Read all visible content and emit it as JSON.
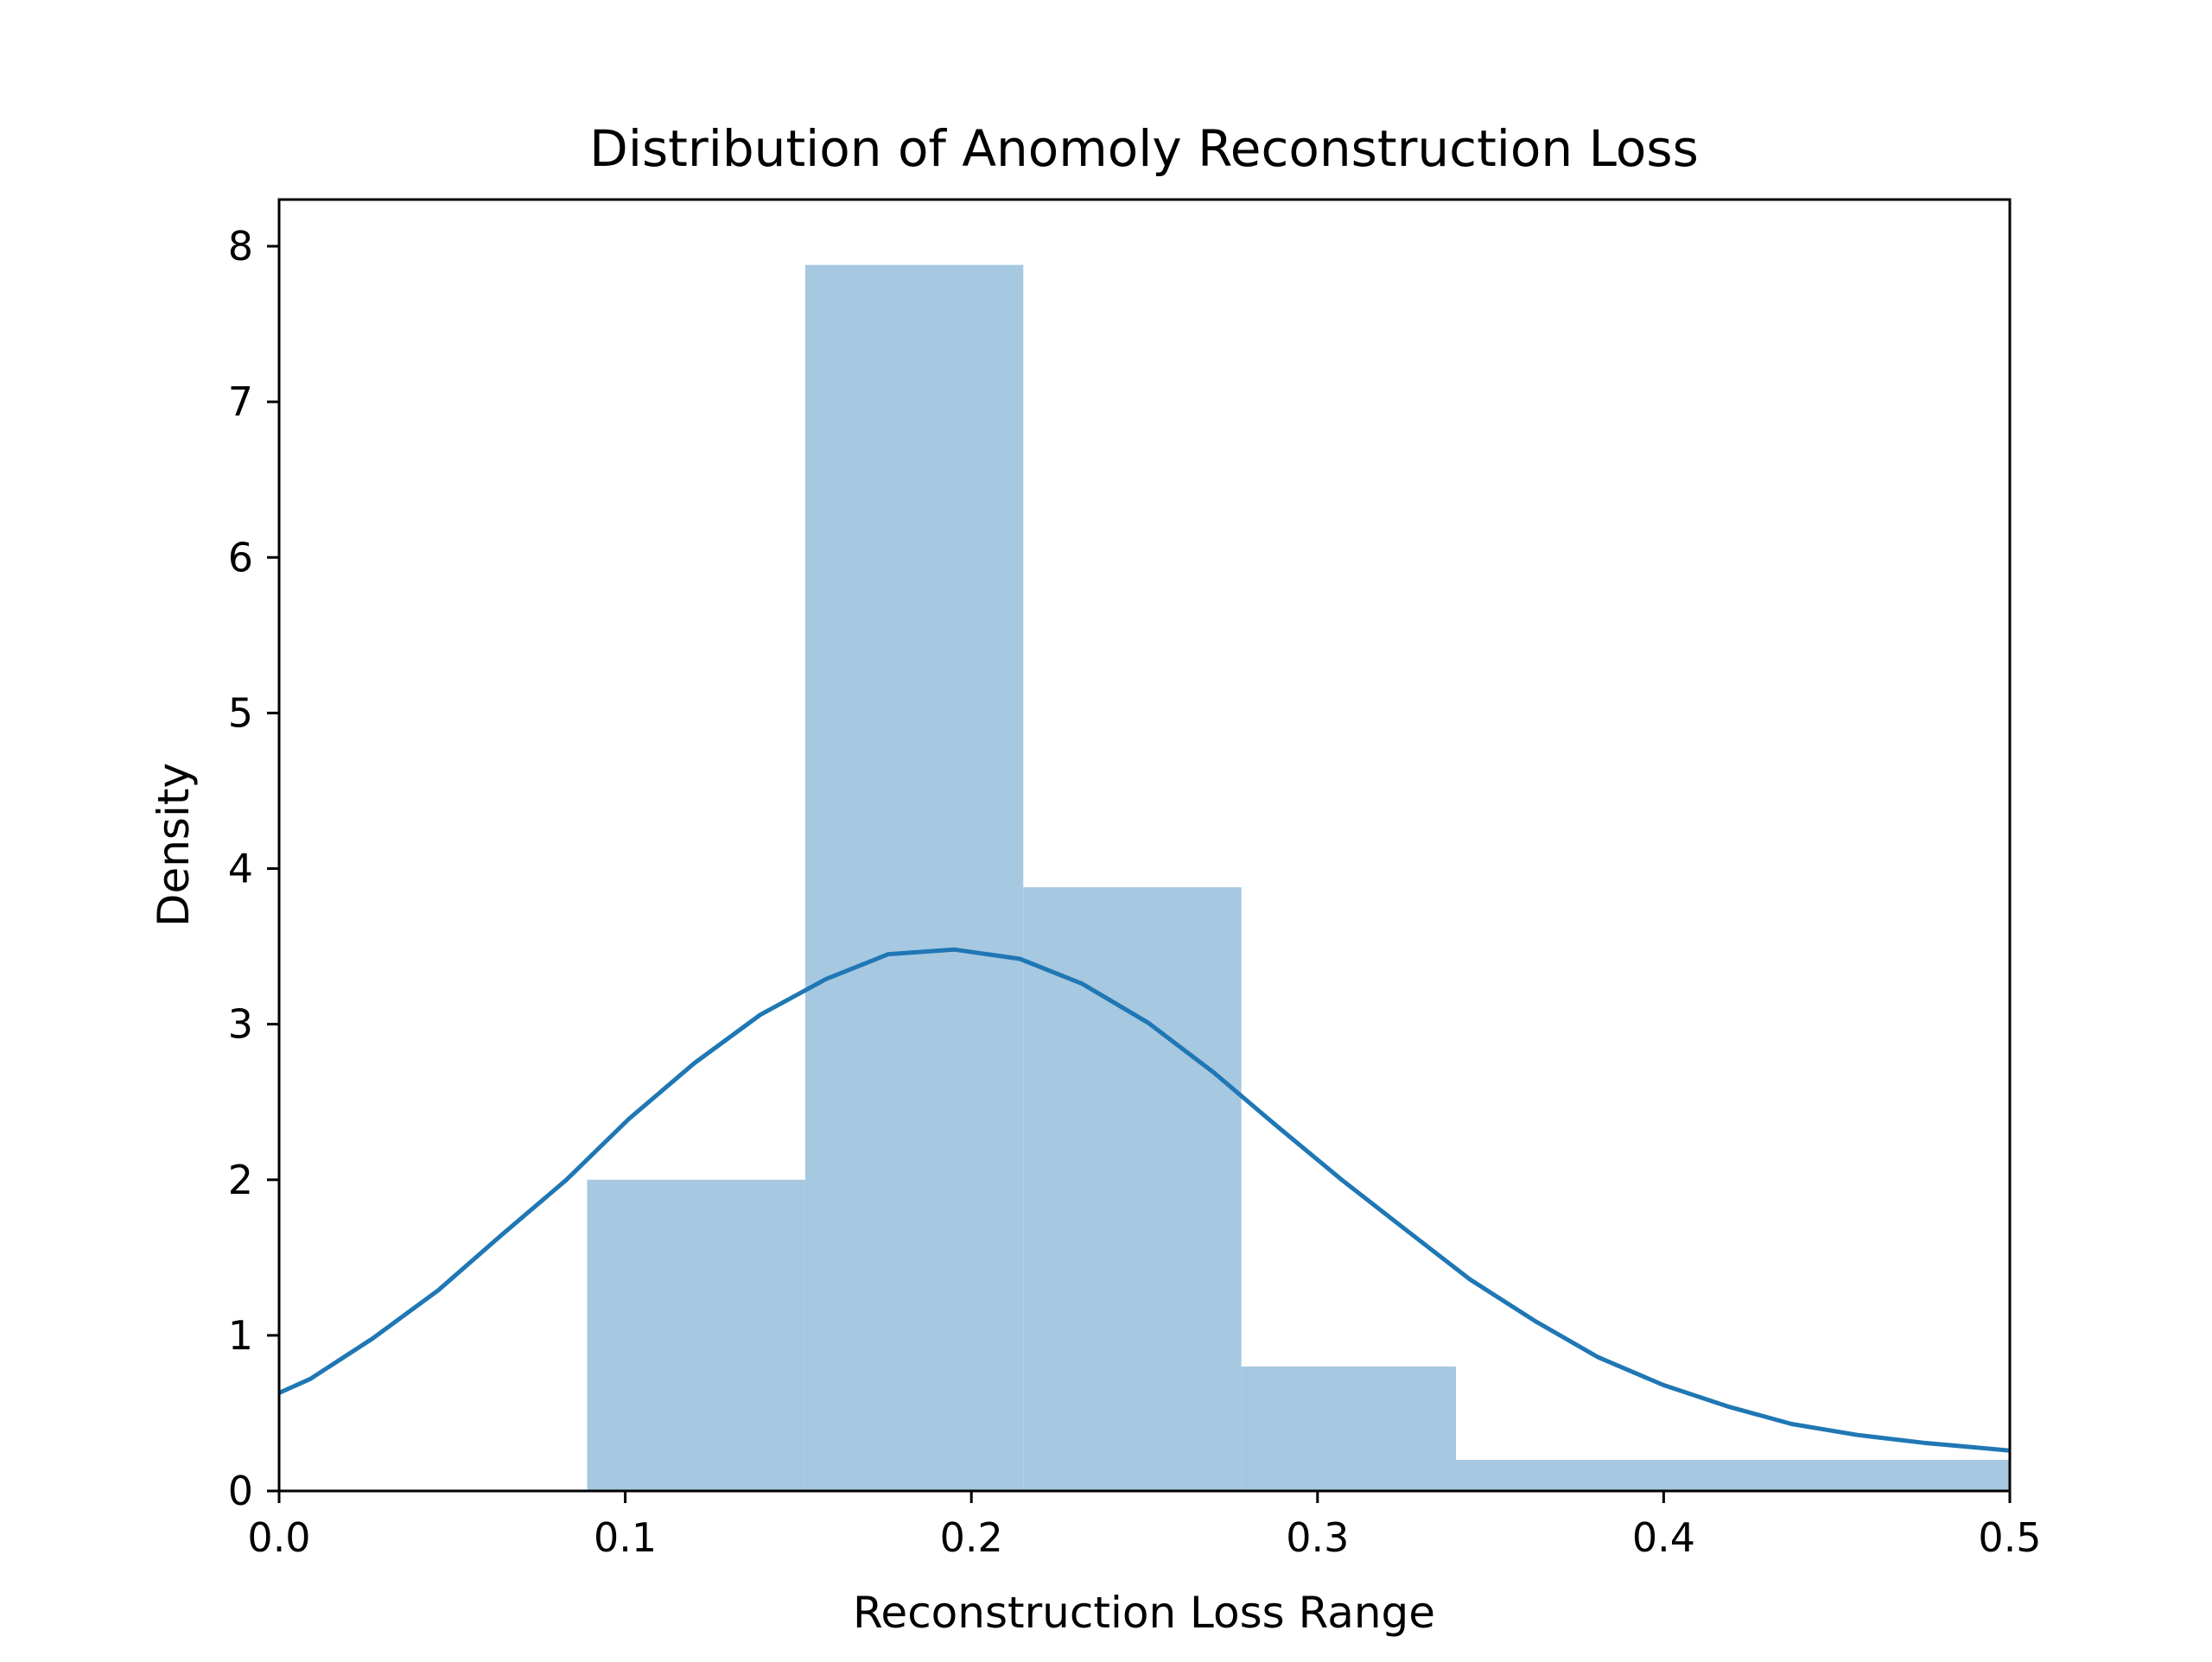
{
  "chart_data": {
    "type": "bar",
    "title": "Distribution of Anomoly Reconstruction Loss",
    "xlabel": "Reconstruction Loss Range",
    "ylabel": "Density",
    "xlim": [
      0.0,
      0.5
    ],
    "ylim": [
      0,
      8.3
    ],
    "grid": false,
    "x_ticks": [
      "0.0",
      "0.1",
      "0.2",
      "0.3",
      "0.4",
      "0.5"
    ],
    "y_ticks": [
      "0",
      "1",
      "2",
      "3",
      "4",
      "5",
      "6",
      "7",
      "8"
    ],
    "histogram": {
      "bin_edges": [
        0.089,
        0.152,
        0.215,
        0.278,
        0.34,
        0.403,
        0.5
      ],
      "density": [
        2.0,
        7.88,
        3.88,
        0.8,
        0.2,
        0.2
      ]
    },
    "kde": {
      "x": [
        0.0,
        0.009,
        0.027,
        0.046,
        0.064,
        0.083,
        0.101,
        0.12,
        0.139,
        0.158,
        0.176,
        0.195,
        0.214,
        0.232,
        0.251,
        0.27,
        0.288,
        0.307,
        0.326,
        0.344,
        0.363,
        0.381,
        0.4,
        0.419,
        0.437,
        0.456,
        0.475,
        0.5
      ],
      "y": [
        0.63,
        0.72,
        0.98,
        1.29,
        1.64,
        2.0,
        2.39,
        2.75,
        3.06,
        3.29,
        3.45,
        3.48,
        3.42,
        3.26,
        3.01,
        2.69,
        2.35,
        2.0,
        1.67,
        1.36,
        1.09,
        0.86,
        0.68,
        0.54,
        0.43,
        0.36,
        0.31,
        0.26
      ]
    },
    "colors": {
      "bar": "#a6c8e0",
      "line": "#1f77b4",
      "axis": "#000000"
    }
  }
}
